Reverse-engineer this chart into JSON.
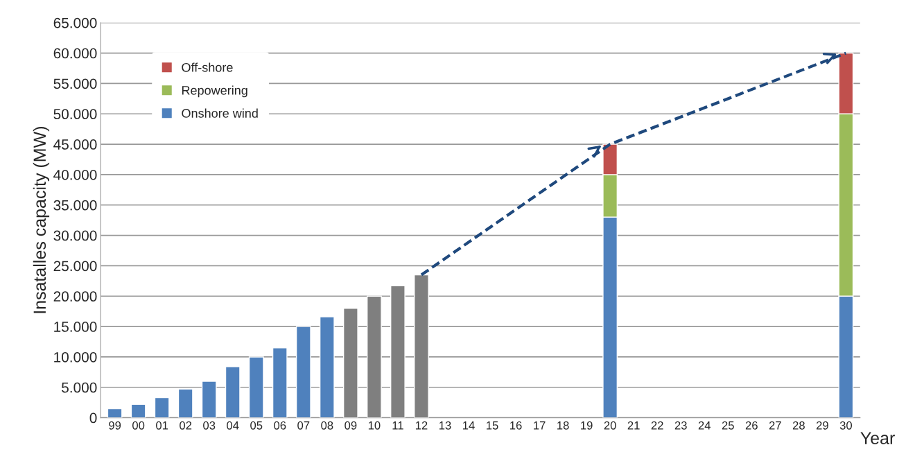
{
  "chart_data": {
    "type": "bar",
    "stacked": true,
    "xlabel": "Year",
    "ylabel": "Insatalles capacity (MW)",
    "categories": [
      "99",
      "00",
      "01",
      "02",
      "03",
      "04",
      "05",
      "06",
      "07",
      "08",
      "09",
      "10",
      "11",
      "12",
      "13",
      "14",
      "15",
      "16",
      "17",
      "18",
      "19",
      "20",
      "21",
      "22",
      "23",
      "24",
      "25",
      "26",
      "27",
      "28",
      "29",
      "30"
    ],
    "series": [
      {
        "name": "Onshore wind",
        "color": "#4f81bd",
        "colors": [
          "#4f81bd",
          "#4f81bd",
          "#4f81bd",
          "#4f81bd",
          "#4f81bd",
          "#4f81bd",
          "#4f81bd",
          "#4f81bd",
          "#4f81bd",
          "#4f81bd",
          "#7f7f7f",
          "#7f7f7f",
          "#7f7f7f",
          "#7f7f7f",
          null,
          null,
          null,
          null,
          null,
          null,
          null,
          "#4f81bd",
          null,
          null,
          null,
          null,
          null,
          null,
          null,
          null,
          null,
          "#4f81bd"
        ],
        "values": [
          1500,
          2200,
          3300,
          4700,
          6000,
          8400,
          10000,
          11500,
          15000,
          16600,
          18000,
          20000,
          21700,
          23500,
          null,
          null,
          null,
          null,
          null,
          null,
          null,
          33000,
          null,
          null,
          null,
          null,
          null,
          null,
          null,
          null,
          null,
          20000
        ]
      },
      {
        "name": "Repowering",
        "color": "#9bbb59",
        "values": [
          null,
          null,
          null,
          null,
          null,
          null,
          null,
          null,
          null,
          null,
          null,
          null,
          null,
          null,
          null,
          null,
          null,
          null,
          null,
          null,
          null,
          7000,
          null,
          null,
          null,
          null,
          null,
          null,
          null,
          null,
          null,
          30000
        ]
      },
      {
        "name": "Off-shore",
        "color": "#c0504d",
        "values": [
          null,
          null,
          null,
          null,
          null,
          null,
          null,
          null,
          null,
          null,
          null,
          null,
          null,
          null,
          null,
          null,
          null,
          null,
          null,
          null,
          null,
          5000,
          null,
          null,
          null,
          null,
          null,
          null,
          null,
          null,
          null,
          10000
        ]
      },
      {
        "type": "line",
        "color": "#1f497d",
        "line_style": "dashed",
        "marker": "none",
        "x": [
          "12",
          "20",
          "30"
        ],
        "values": [
          23500,
          45000,
          60000
        ]
      }
    ],
    "ylim": [
      0,
      65000
    ],
    "yticks": [
      0,
      {
        "value": 5000,
        "label": "5.000"
      },
      {
        "value": 10000,
        "label": "10.000"
      },
      {
        "value": 15000,
        "label": "15.000"
      },
      {
        "value": 20000,
        "label": "20.000"
      },
      {
        "value": 25000,
        "label": "25.000"
      },
      {
        "value": 30000,
        "label": "30.000"
      },
      {
        "value": 35000,
        "label": "35.000"
      },
      {
        "value": 40000,
        "label": "40.000"
      },
      {
        "value": 45000,
        "label": "45.000"
      },
      {
        "value": 50000,
        "label": "50.000"
      },
      {
        "value": 55000,
        "label": "55.000"
      },
      {
        "value": 60000,
        "label": "60.000"
      },
      {
        "value": 65000,
        "label": "65.000"
      }
    ],
    "grid": "y",
    "legend": "top left"
  }
}
